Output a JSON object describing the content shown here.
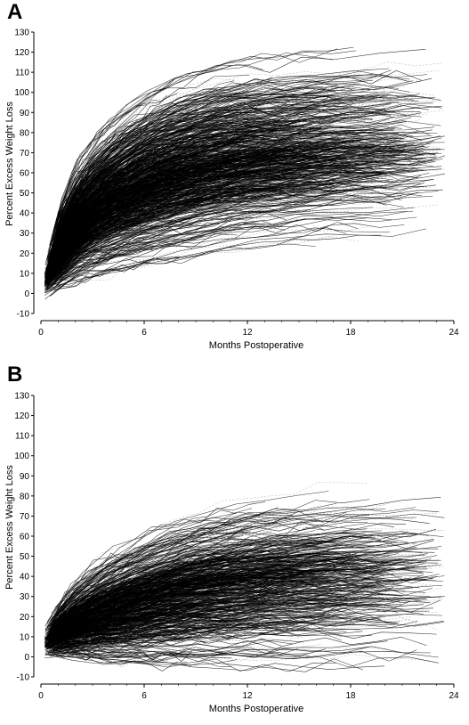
{
  "chart_data": [
    {
      "type": "line",
      "panel": "A",
      "xlabel": "Months Postoperative",
      "ylabel": "Percent Excess Weight Loss",
      "xlim": [
        0,
        24
      ],
      "ylim": [
        -10,
        130
      ],
      "xticks": [
        0,
        6,
        12,
        18,
        24
      ],
      "yticks": [
        -10,
        0,
        10,
        20,
        30,
        40,
        50,
        60,
        70,
        80,
        90,
        100,
        110,
        120,
        130
      ],
      "grid": false,
      "legend": "none",
      "series_description_count": 900,
      "median_curve": {
        "x": [
          0,
          1,
          2,
          3,
          4,
          6,
          8,
          10,
          12,
          15,
          18,
          21,
          23
        ],
        "y": [
          0,
          22,
          33,
          41,
          47,
          55,
          61,
          65,
          68,
          71,
          73,
          74,
          75
        ]
      },
      "p10_curve": {
        "x": [
          0,
          1,
          2,
          3,
          4,
          6,
          8,
          10,
          12,
          15,
          18,
          21,
          23
        ],
        "y": [
          0,
          12,
          20,
          25,
          29,
          35,
          39,
          43,
          46,
          49,
          51,
          52,
          53
        ]
      },
      "p90_curve": {
        "x": [
          0,
          1,
          2,
          3,
          4,
          6,
          8,
          10,
          12,
          15,
          18,
          21,
          23
        ],
        "y": [
          2,
          34,
          48,
          58,
          66,
          77,
          84,
          89,
          92,
          95,
          97,
          98,
          99
        ]
      },
      "max_curve": {
        "x": [
          0,
          2,
          4,
          6,
          8,
          10,
          12,
          15,
          18,
          21,
          23
        ],
        "y": [
          5,
          70,
          85,
          97,
          105,
          110,
          115,
          120,
          122,
          123,
          123
        ]
      }
    },
    {
      "type": "line",
      "panel": "B",
      "xlabel": "Months Postoperative",
      "ylabel": "Percent Excess Weight Loss",
      "xlim": [
        0,
        24
      ],
      "ylim": [
        -10,
        130
      ],
      "xticks": [
        0,
        6,
        12,
        18,
        24
      ],
      "yticks": [
        -10,
        0,
        10,
        20,
        30,
        40,
        50,
        60,
        70,
        80,
        90,
        100,
        110,
        120,
        130
      ],
      "grid": false,
      "legend": "none",
      "series_description_count": 700,
      "median_curve": {
        "x": [
          0,
          1,
          2,
          3,
          4,
          6,
          8,
          10,
          12,
          15,
          18,
          21,
          23
        ],
        "y": [
          5,
          12,
          16,
          19,
          22,
          27,
          31,
          34,
          36,
          38,
          39,
          40,
          41
        ]
      },
      "p10_curve": {
        "x": [
          0,
          1,
          2,
          3,
          4,
          6,
          8,
          10,
          12,
          15,
          18,
          21,
          23
        ],
        "y": [
          3,
          7,
          8,
          9,
          10,
          12,
          14,
          15,
          16,
          17,
          18,
          18,
          18
        ]
      },
      "p90_curve": {
        "x": [
          0,
          1,
          2,
          3,
          4,
          6,
          8,
          10,
          12,
          15,
          18,
          21,
          23
        ],
        "y": [
          8,
          20,
          27,
          32,
          37,
          44,
          50,
          54,
          57,
          60,
          62,
          63,
          64
        ]
      },
      "max_curve": {
        "x": [
          0,
          2,
          4,
          6,
          8,
          10,
          12,
          15,
          18,
          21,
          23
        ],
        "y": [
          15,
          45,
          60,
          70,
          78,
          85,
          90,
          93,
          95,
          90,
          88
        ]
      }
    }
  ],
  "panels": [
    {
      "letter": "A"
    },
    {
      "letter": "B"
    }
  ]
}
